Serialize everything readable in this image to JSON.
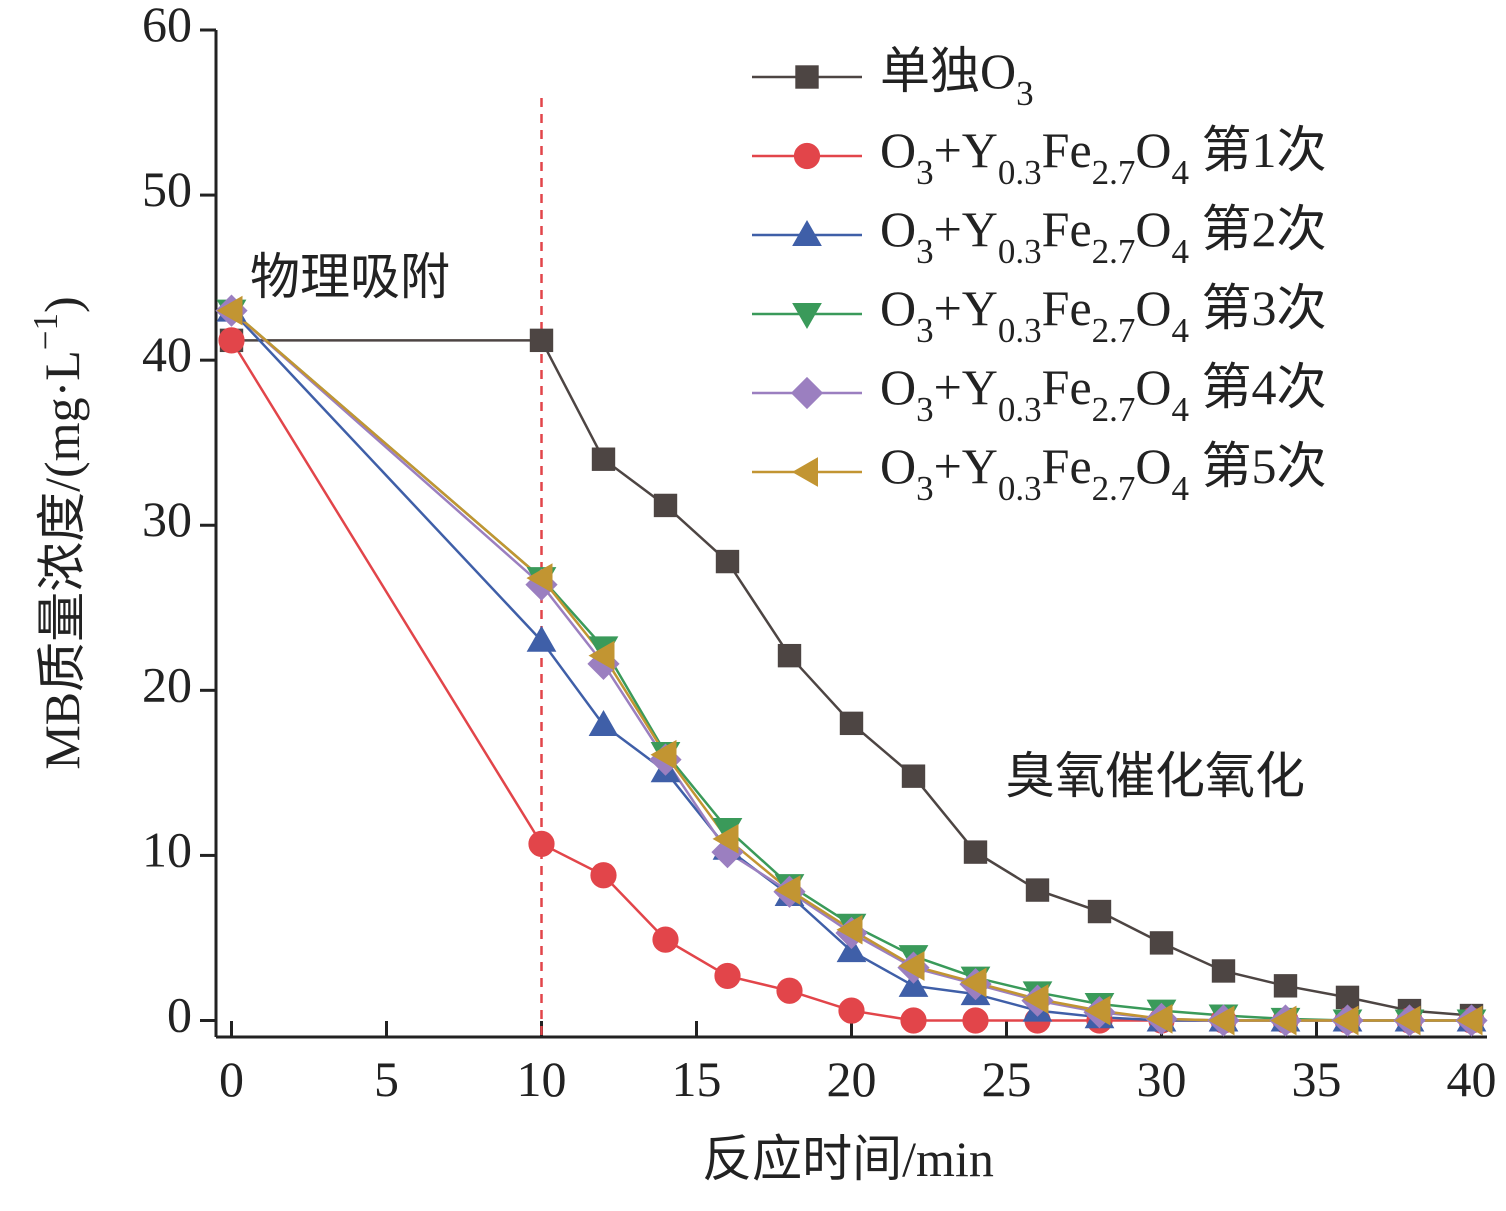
{
  "chart_data": {
    "type": "line",
    "x_label": "反应时间/min",
    "y_label": "MB质量浓度/(mg·L−1)",
    "annotations": [
      "物理吸附",
      "臭氧催化氧化"
    ],
    "reference_line": {
      "x": 10,
      "color": "#e2454a"
    },
    "x": [
      0,
      10,
      12,
      14,
      16,
      18,
      20,
      22,
      24,
      26,
      28,
      30,
      32,
      34,
      36,
      38,
      40
    ],
    "series": [
      {
        "name": "单独O3",
        "color": "#4d4543",
        "marker": "square",
        "values": [
          41.2,
          41.2,
          34,
          31.2,
          27.8,
          22.1,
          18,
          14.8,
          10.2,
          7.9,
          6.6,
          4.7,
          3.0,
          2.1,
          1.4,
          0.6,
          0.3
        ]
      },
      {
        "name": "O3+Y0.3Fe2.7O4 第1次",
        "color": "#e2454a",
        "marker": "circle",
        "values": [
          41.2,
          10.7,
          8.8,
          4.9,
          2.7,
          1.8,
          0.6,
          0,
          0,
          0,
          0,
          0,
          0,
          0,
          0,
          0,
          0
        ]
      },
      {
        "name": "O3+Y0.3Fe2.7O4 第2次",
        "color": "#3f5fa8",
        "marker": "triangle-up",
        "values": [
          43,
          23,
          17.9,
          15.1,
          10.4,
          7.6,
          4.2,
          2.1,
          1.6,
          0.6,
          0.2,
          0,
          0,
          0,
          0,
          0,
          0
        ]
      },
      {
        "name": "O3+Y0.3Fe2.7O4 第3次",
        "color": "#3a9a5a",
        "marker": "triangle-down",
        "values": [
          43,
          26.8,
          22.6,
          16.2,
          11.6,
          8.2,
          5.8,
          3.9,
          2.6,
          1.7,
          1.0,
          0.6,
          0.3,
          0.1,
          0,
          0,
          0
        ]
      },
      {
        "name": "O3+Y0.3Fe2.7O4 第4次",
        "color": "#9b7fc0",
        "marker": "diamond",
        "values": [
          43,
          26.4,
          21.6,
          15.8,
          10.2,
          7.8,
          5.3,
          3.2,
          2.2,
          1.2,
          0.5,
          0.1,
          0,
          0,
          0,
          0,
          0
        ]
      },
      {
        "name": "O3+Y0.3Fe2.7O4 第5次",
        "color": "#c29532",
        "marker": "triangle-left",
        "values": [
          43,
          26.8,
          22.1,
          16.1,
          11.0,
          7.9,
          5.5,
          3.3,
          2.3,
          1.3,
          0.6,
          0.1,
          0,
          0,
          0,
          0,
          0
        ]
      }
    ],
    "xlim": [
      -0.5,
      40.5
    ],
    "ylim": [
      -1,
      60
    ],
    "xticks": [
      0,
      5,
      10,
      15,
      20,
      25,
      30,
      35,
      40
    ],
    "yticks": [
      0,
      10,
      20,
      30,
      40,
      50,
      60
    ],
    "legend": "upper right"
  }
}
